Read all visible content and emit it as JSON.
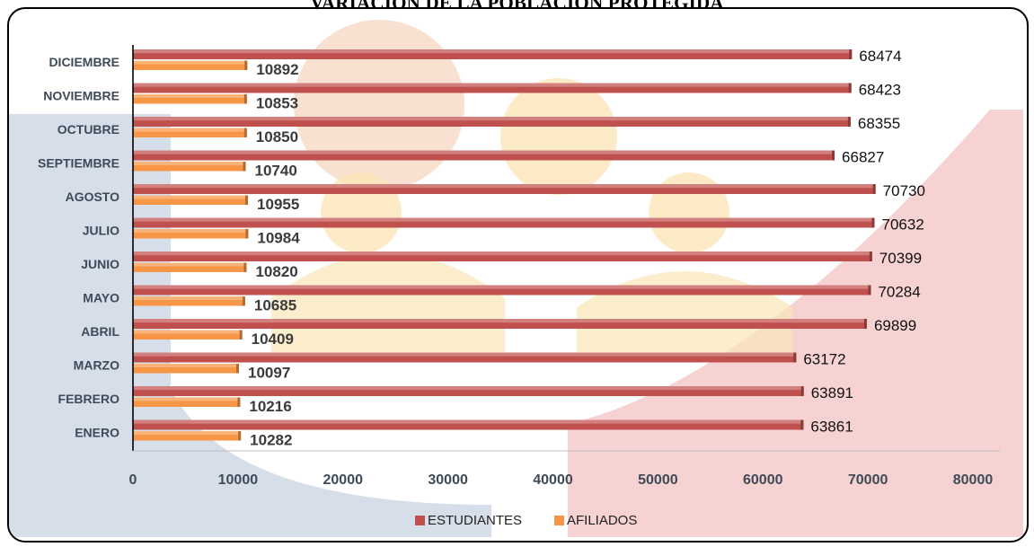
{
  "chart_data": {
    "type": "bar",
    "orientation": "horizontal",
    "title": "VARIACIÓN DE LA POBLACIÓN PROTEGIDA",
    "categories": [
      "DICIEMBRE",
      "NOVIEMBRE",
      "OCTUBRE",
      "SEPTIEMBRE",
      "AGOSTO",
      "JULIO",
      "JUNIO",
      "MAYO",
      "ABRIL",
      "MARZO",
      "FEBRERO",
      "ENERO"
    ],
    "series": [
      {
        "name": "ESTUDIANTES",
        "color": "#c0504d",
        "values": [
          68474,
          68423,
          68355,
          66827,
          70730,
          70632,
          70399,
          70284,
          69899,
          63172,
          63891,
          63861
        ]
      },
      {
        "name": "AFILIADOS",
        "color": "#f79646",
        "values": [
          10892,
          10853,
          10850,
          10740,
          10955,
          10984,
          10820,
          10685,
          10409,
          10097,
          10216,
          10282
        ]
      }
    ],
    "xlim": [
      0,
      80000
    ],
    "xticks": [
      "0",
      "10000",
      "20000",
      "30000",
      "40000",
      "50000",
      "60000",
      "70000",
      "80000"
    ],
    "legend": "bottom",
    "grid": false,
    "data_labels": true
  }
}
